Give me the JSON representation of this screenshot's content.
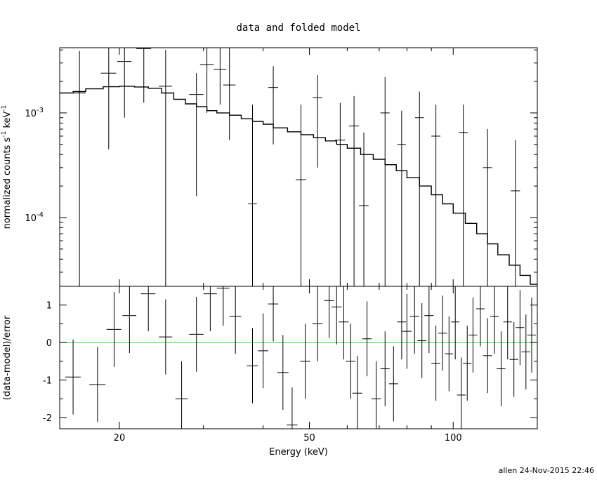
{
  "chart_data": {
    "title": "data and folded model",
    "credit": "allen 24-Nov-2015 22:46",
    "xlabel": "Energy (keV)",
    "xlim": [
      15,
      150
    ],
    "x_scale": "log",
    "x_ticks": [
      {
        "value": 20,
        "label": "20"
      },
      {
        "value": 50,
        "label": "50"
      },
      {
        "value": 100,
        "label": "100"
      }
    ],
    "panels": [
      {
        "id": "spectrum",
        "type": "scatter",
        "ylabel": "normalized counts s",
        "ylabel_sup1": "-1",
        "ylabel_mid": " keV",
        "ylabel_sup2": "-1",
        "y_scale": "log",
        "ylim": [
          2.2e-05,
          0.0042
        ],
        "y_ticks": [
          {
            "value": 0.001,
            "base": "10",
            "exp": "-3"
          },
          {
            "value": 0.0001,
            "base": "10",
            "exp": "-4"
          }
        ],
        "series": [
          {
            "role": "data",
            "color": "#000000",
            "points": [
              {
                "x": 16.5,
                "xerr": 0.5,
                "y": 0.00155,
                "ylo": 2.2e-05,
                "yhi": 0.0039
              },
              {
                "x": 19.0,
                "xerr": 0.7,
                "y": 0.0024,
                "ylo": 0.00045,
                "yhi": 0.0042
              },
              {
                "x": 20.5,
                "xerr": 0.7,
                "y": 0.0031,
                "ylo": 0.0009,
                "yhi": 0.0042
              },
              {
                "x": 22.5,
                "xerr": 0.8,
                "y": 0.0041,
                "ylo": 0.00125,
                "yhi": 0.0042
              },
              {
                "x": 25.0,
                "xerr": 0.8,
                "y": 0.0018,
                "ylo": 2.2e-05,
                "yhi": 0.004
              },
              {
                "x": 29.0,
                "xerr": 1.0,
                "y": 0.0015,
                "ylo": 0.00016,
                "yhi": 0.0024
              },
              {
                "x": 30.5,
                "xerr": 1.0,
                "y": 0.0029,
                "ylo": 0.001,
                "yhi": 0.0042
              },
              {
                "x": 32.5,
                "xerr": 1.0,
                "y": 0.0026,
                "ylo": 0.0012,
                "yhi": 0.0042
              },
              {
                "x": 34.0,
                "xerr": 1.0,
                "y": 0.00185,
                "ylo": 0.00055,
                "yhi": 0.0042
              },
              {
                "x": 38.0,
                "xerr": 0.8,
                "y": 0.000135,
                "ylo": 2.2e-05,
                "yhi": 0.0012
              },
              {
                "x": 42.0,
                "xerr": 1.0,
                "y": 0.00175,
                "ylo": 0.0005,
                "yhi": 0.0028
              },
              {
                "x": 48.0,
                "xerr": 1.2,
                "y": 0.00023,
                "ylo": 2.2e-05,
                "yhi": 0.0012
              },
              {
                "x": 52.0,
                "xerr": 1.2,
                "y": 0.0014,
                "ylo": 0.0003,
                "yhi": 0.0023
              },
              {
                "x": 58.0,
                "xerr": 1.4,
                "y": 0.00055,
                "ylo": 2.2e-05,
                "yhi": 0.00125
              },
              {
                "x": 62.0,
                "xerr": 1.5,
                "y": 0.00075,
                "ylo": 2.2e-05,
                "yhi": 0.00145
              },
              {
                "x": 65.0,
                "xerr": 1.5,
                "y": 0.00013,
                "ylo": 2.2e-05,
                "yhi": 0.00065
              },
              {
                "x": 72.0,
                "xerr": 1.6,
                "y": 0.001,
                "ylo": 2.2e-05,
                "yhi": 0.0022
              },
              {
                "x": 78.0,
                "xerr": 1.6,
                "y": 0.0005,
                "ylo": 2.2e-05,
                "yhi": 0.00105
              },
              {
                "x": 85.0,
                "xerr": 1.8,
                "y": 0.0009,
                "ylo": 2.2e-05,
                "yhi": 0.0016
              },
              {
                "x": 92.0,
                "xerr": 2.0,
                "y": 0.0006,
                "ylo": 2.2e-05,
                "yhi": 0.0012
              },
              {
                "x": 105.0,
                "xerr": 2.2,
                "y": 0.00065,
                "ylo": 2.2e-05,
                "yhi": 0.0012
              },
              {
                "x": 118.0,
                "xerr": 2.5,
                "y": 0.0003,
                "ylo": 2.2e-05,
                "yhi": 0.0007
              },
              {
                "x": 135.0,
                "xerr": 3.0,
                "y": 0.00018,
                "ylo": 2.2e-05,
                "yhi": 0.00055
              }
            ]
          },
          {
            "role": "model",
            "color": "#000000",
            "step_edges": [
              15,
              16,
              17,
              18.5,
              20,
              21.5,
              23,
              24.5,
              26,
              27.5,
              29,
              30.5,
              32,
              34,
              36,
              38,
              40,
              42,
              45,
              48,
              51,
              54,
              57,
              60,
              64,
              68,
              72,
              76,
              80,
              85,
              90,
              95,
              100,
              106,
              112,
              118,
              124,
              131,
              138,
              145,
              150
            ],
            "step_values": [
              0.00155,
              0.0016,
              0.0017,
              0.00178,
              0.0018,
              0.00177,
              0.00172,
              0.00155,
              0.00135,
              0.00122,
              0.00115,
              0.00105,
              0.001,
              0.00095,
              0.00088,
              0.00083,
              0.00078,
              0.00072,
              0.00066,
              0.00062,
              0.00058,
              0.00054,
              0.0005,
              0.00046,
              0.0004,
              0.00036,
              0.00032,
              0.00028,
              0.00024,
              0.0002,
              0.000165,
              0.000135,
              0.00011,
              8.8e-05,
              7e-05,
              5.6e-05,
              4.4e-05,
              3.5e-05,
              2.8e-05,
              2.3e-05
            ]
          }
        ]
      },
      {
        "id": "residuals",
        "type": "scatter",
        "ylabel": "(data-model)/error",
        "y_scale": "linear",
        "ylim": [
          -2.3,
          1.5
        ],
        "y_ticks": [
          {
            "value": 1,
            "label": "1"
          },
          {
            "value": 0,
            "label": "0"
          },
          {
            "value": -1,
            "label": "-1"
          },
          {
            "value": -2,
            "label": "-2"
          }
        ],
        "zero_line": {
          "y": 0,
          "color": "#22dd22"
        },
        "series": [
          {
            "role": "residuals",
            "color": "#000000",
            "points": [
              {
                "x": 16.0,
                "xerr": 0.6,
                "y": -0.92,
                "err": 1.0
              },
              {
                "x": 18.0,
                "xerr": 0.7,
                "y": -1.12,
                "err": 1.0
              },
              {
                "x": 19.5,
                "xerr": 0.7,
                "y": 0.35,
                "err": 1.0
              },
              {
                "x": 21.0,
                "xerr": 0.7,
                "y": 0.72,
                "err": 1.0
              },
              {
                "x": 23.0,
                "xerr": 0.8,
                "y": 1.3,
                "err": 1.0
              },
              {
                "x": 25.0,
                "xerr": 0.8,
                "y": 0.15,
                "err": 1.0
              },
              {
                "x": 27.0,
                "xerr": 0.8,
                "y": -1.5,
                "err": 1.0
              },
              {
                "x": 29.0,
                "xerr": 1.0,
                "y": 0.22,
                "err": 1.0
              },
              {
                "x": 31.0,
                "xerr": 1.0,
                "y": 1.3,
                "err": 1.0
              },
              {
                "x": 33.0,
                "xerr": 1.0,
                "y": 1.45,
                "err": 1.0
              },
              {
                "x": 35.0,
                "xerr": 1.0,
                "y": 0.7,
                "err": 1.0
              },
              {
                "x": 38.0,
                "xerr": 1.0,
                "y": -0.62,
                "err": 1.0
              },
              {
                "x": 40.0,
                "xerr": 1.0,
                "y": -0.22,
                "err": 1.0
              },
              {
                "x": 42.0,
                "xerr": 1.0,
                "y": 1.03,
                "err": 1.0
              },
              {
                "x": 44.0,
                "xerr": 1.2,
                "y": -0.8,
                "err": 1.0
              },
              {
                "x": 46.0,
                "xerr": 1.2,
                "y": -2.2,
                "err": 1.0
              },
              {
                "x": 49.0,
                "xerr": 1.2,
                "y": -0.5,
                "err": 1.0
              },
              {
                "x": 52.0,
                "xerr": 1.3,
                "y": 0.5,
                "err": 1.0
              },
              {
                "x": 55.0,
                "xerr": 1.3,
                "y": 1.12,
                "err": 1.0
              },
              {
                "x": 57.0,
                "xerr": 1.4,
                "y": 0.95,
                "err": 1.0
              },
              {
                "x": 59.0,
                "xerr": 1.4,
                "y": 0.55,
                "err": 1.0
              },
              {
                "x": 61.0,
                "xerr": 1.4,
                "y": -0.5,
                "err": 1.0
              },
              {
                "x": 63.0,
                "xerr": 1.5,
                "y": -1.35,
                "err": 1.0
              },
              {
                "x": 66.0,
                "xerr": 1.5,
                "y": 0.1,
                "err": 1.0
              },
              {
                "x": 69.0,
                "xerr": 1.6,
                "y": -1.5,
                "err": 1.0
              },
              {
                "x": 72.0,
                "xerr": 1.6,
                "y": -0.7,
                "err": 1.0
              },
              {
                "x": 75.0,
                "xerr": 1.6,
                "y": -1.1,
                "err": 1.0
              },
              {
                "x": 78.0,
                "xerr": 1.7,
                "y": 0.55,
                "err": 1.0
              },
              {
                "x": 80.0,
                "xerr": 1.8,
                "y": 0.3,
                "err": 1.0
              },
              {
                "x": 83.0,
                "xerr": 1.8,
                "y": 0.7,
                "err": 1.0
              },
              {
                "x": 86.0,
                "xerr": 1.9,
                "y": 0.05,
                "err": 1.0
              },
              {
                "x": 89.0,
                "xerr": 2.0,
                "y": 0.72,
                "err": 1.0
              },
              {
                "x": 92.0,
                "xerr": 2.0,
                "y": -0.55,
                "err": 1.0
              },
              {
                "x": 95.0,
                "xerr": 2.0,
                "y": 0.25,
                "err": 1.0
              },
              {
                "x": 98.0,
                "xerr": 2.0,
                "y": -0.3,
                "err": 1.0
              },
              {
                "x": 101.0,
                "xerr": 2.1,
                "y": 0.55,
                "err": 1.0
              },
              {
                "x": 104.0,
                "xerr": 2.2,
                "y": -1.4,
                "err": 1.0
              },
              {
                "x": 107.0,
                "xerr": 2.2,
                "y": -0.55,
                "err": 1.0
              },
              {
                "x": 110.0,
                "xerr": 2.3,
                "y": 0.2,
                "err": 1.0
              },
              {
                "x": 114.0,
                "xerr": 2.4,
                "y": 0.9,
                "err": 1.0
              },
              {
                "x": 118.0,
                "xerr": 2.5,
                "y": -0.35,
                "err": 1.0
              },
              {
                "x": 122.0,
                "xerr": 2.5,
                "y": 0.7,
                "err": 1.0
              },
              {
                "x": 126.0,
                "xerr": 2.6,
                "y": -0.7,
                "err": 1.0
              },
              {
                "x": 130.0,
                "xerr": 2.7,
                "y": 0.55,
                "err": 1.0
              },
              {
                "x": 134.0,
                "xerr": 2.8,
                "y": -0.45,
                "err": 1.0
              },
              {
                "x": 138.0,
                "xerr": 2.9,
                "y": 0.4,
                "err": 1.0
              },
              {
                "x": 142.0,
                "xerr": 3.0,
                "y": -0.25,
                "err": 1.0
              },
              {
                "x": 146.0,
                "xerr": 3.0,
                "y": 0.2,
                "err": 1.0
              }
            ]
          }
        ]
      }
    ]
  }
}
